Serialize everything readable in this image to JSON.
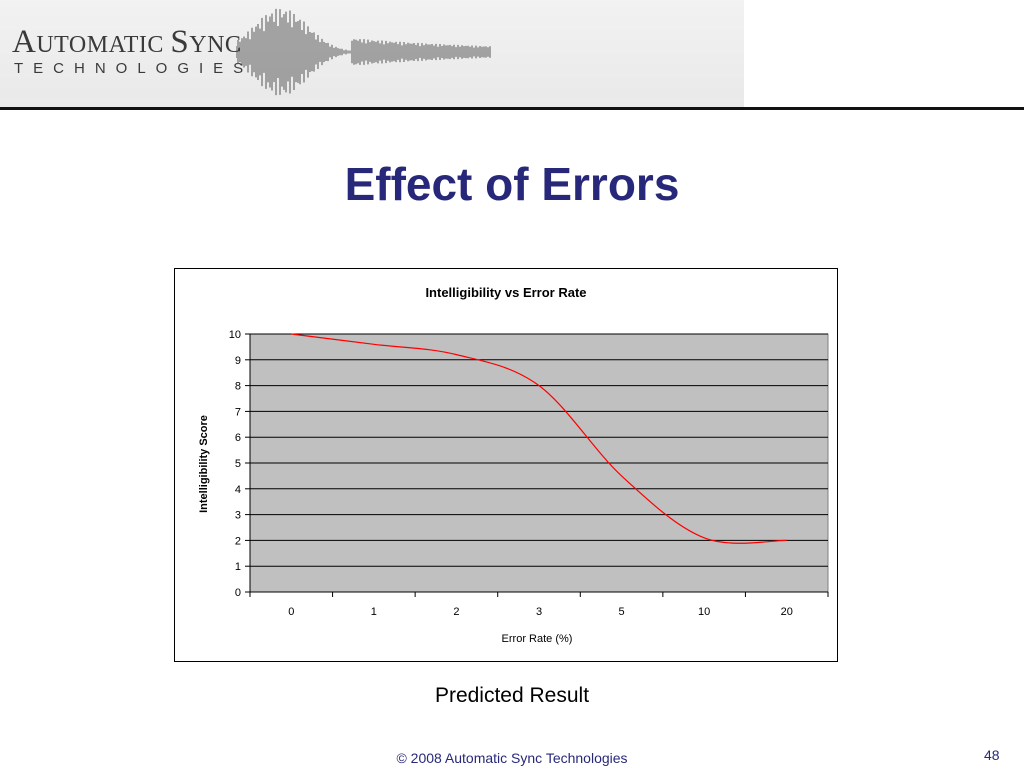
{
  "logo": {
    "line1_first": "A",
    "line1_rest": "UTOMATIC ",
    "line1_s": "S",
    "line1_ync": "YNC",
    "line2": "TECHNOLOGIES"
  },
  "title": "Effect of Errors",
  "chart_data": {
    "type": "line",
    "title": "Intelligibility vs Error Rate",
    "xlabel": "Error Rate (%)",
    "ylabel": "Intelligibility Score",
    "categories": [
      "0",
      "1",
      "2",
      "3",
      "5",
      "10",
      "20"
    ],
    "yticks": [
      "0",
      "1",
      "2",
      "3",
      "4",
      "5",
      "6",
      "7",
      "8",
      "9",
      "10"
    ],
    "series": [
      {
        "values": [
          10,
          9.6,
          9.2,
          8.0,
          4.5,
          2.1,
          2.0
        ],
        "color": "#ff0000"
      }
    ],
    "ylim": [
      0,
      10
    ],
    "grid": true,
    "plot_background": "#c0c0c0",
    "legend": "none"
  },
  "caption": "Predicted Result",
  "footer": "© 2008 Automatic Sync Technologies",
  "page_number": "48"
}
